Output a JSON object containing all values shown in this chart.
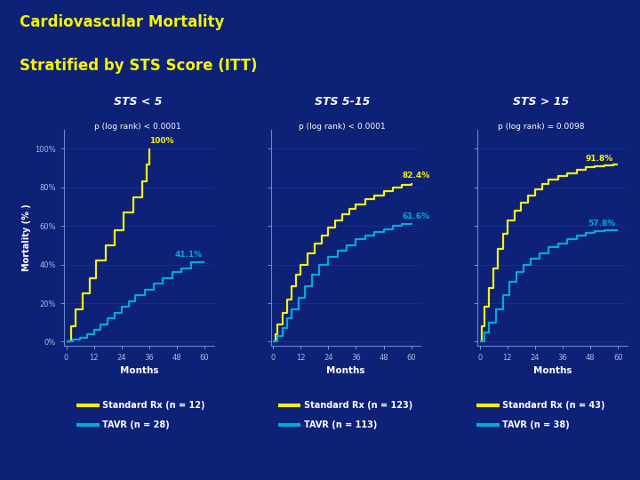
{
  "title_line1": "Cardiovascular Mortality",
  "title_line2": "Stratified by STS Score (ITT)",
  "background_color": "#0d2177",
  "panel_bg": "#0d2177",
  "title_color": "#f5f500",
  "ylabel": "Mortality (% )",
  "xlabel": "Months",
  "xticks": [
    0,
    12,
    24,
    36,
    48,
    60
  ],
  "ytick_labels": [
    "0%",
    "20%",
    "40%",
    "60%",
    "80%",
    "100%"
  ],
  "ytick_vals": [
    0,
    20,
    40,
    60,
    80,
    100
  ],
  "ylim": [
    -2,
    110
  ],
  "xlim": [
    -1,
    64
  ],
  "panels": [
    {
      "title": "STS < 5",
      "pvalue": "p (log rank) < 0.0001",
      "std_label": "Standard Rx (n = 12)",
      "tavr_label": "TAVR (n = 28)",
      "std_endpoint": "100%",
      "tavr_endpoint": "41.1%",
      "std_ep_x": 36,
      "std_ep_y": 102,
      "tavr_ep_x": 47,
      "tavr_ep_y": 43,
      "std_x": [
        0,
        2,
        4,
        7,
        10,
        13,
        17,
        21,
        25,
        29,
        33,
        35,
        36
      ],
      "std_y": [
        0,
        8,
        17,
        25,
        33,
        42,
        50,
        58,
        67,
        75,
        83,
        92,
        100
      ],
      "tavr_x": [
        0,
        3,
        6,
        9,
        12,
        15,
        18,
        21,
        24,
        27,
        30,
        34,
        38,
        42,
        46,
        50,
        54,
        58,
        60
      ],
      "tavr_y": [
        0,
        1,
        2,
        4,
        6,
        9,
        12,
        15,
        18,
        21,
        24,
        27,
        30,
        33,
        36,
        38,
        41.1,
        41.1,
        41.1
      ]
    },
    {
      "title": "STS 5-15",
      "pvalue": "p (log rank) < 0.0001",
      "std_label": "Standard Rx (n = 123)",
      "tavr_label": "TAVR (n = 113)",
      "std_endpoint": "82.4%",
      "tavr_endpoint": "61.6%",
      "std_ep_x": 56,
      "std_ep_y": 84,
      "tavr_ep_x": 56,
      "tavr_ep_y": 63,
      "std_x": [
        0,
        1,
        2,
        4,
        6,
        8,
        10,
        12,
        15,
        18,
        21,
        24,
        27,
        30,
        33,
        36,
        40,
        44,
        48,
        52,
        56,
        60
      ],
      "std_y": [
        0,
        4,
        9,
        15,
        22,
        29,
        35,
        40,
        46,
        51,
        55,
        59,
        63,
        66,
        69,
        71,
        74,
        76,
        78,
        80,
        81.5,
        82.4
      ],
      "tavr_x": [
        0,
        2,
        4,
        6,
        8,
        11,
        14,
        17,
        20,
        24,
        28,
        32,
        36,
        40,
        44,
        48,
        52,
        56,
        60
      ],
      "tavr_y": [
        0,
        3,
        7,
        12,
        17,
        23,
        29,
        35,
        40,
        44,
        47,
        50,
        53,
        55,
        57,
        58.5,
        60,
        61,
        61.6
      ]
    },
    {
      "title": "STS > 15",
      "pvalue": "p (log rank) = 0.0098",
      "std_label": "Standard Rx (n = 43)",
      "tavr_label": "TAVR (n = 38)",
      "std_endpoint": "91.8%",
      "tavr_endpoint": "57.8%",
      "std_ep_x": 46,
      "std_ep_y": 93,
      "tavr_ep_x": 47,
      "tavr_ep_y": 59,
      "std_x": [
        0,
        1,
        2,
        4,
        6,
        8,
        10,
        12,
        15,
        18,
        21,
        24,
        27,
        30,
        34,
        38,
        42,
        46,
        50,
        54,
        58,
        60
      ],
      "std_y": [
        0,
        8,
        18,
        28,
        38,
        48,
        56,
        63,
        68,
        72,
        76,
        79,
        82,
        84,
        86,
        87.5,
        89,
        90.5,
        91.2,
        91.6,
        91.8,
        91.8
      ],
      "tavr_x": [
        0,
        2,
        4,
        7,
        10,
        13,
        16,
        19,
        22,
        26,
        30,
        34,
        38,
        42,
        46,
        50,
        54,
        58,
        60
      ],
      "tavr_y": [
        0,
        5,
        10,
        17,
        24,
        31,
        36,
        40,
        43,
        46,
        49,
        51,
        53,
        55,
        56.5,
        57.5,
        57.8,
        57.8,
        57.8
      ]
    }
  ],
  "std_color": "#f5f500",
  "tavr_color": "#00aadd",
  "grid_color": "#1a3399",
  "spine_color": "#3355bb",
  "tick_color": "#aabbdd",
  "axis_spine_color": "#6688cc"
}
